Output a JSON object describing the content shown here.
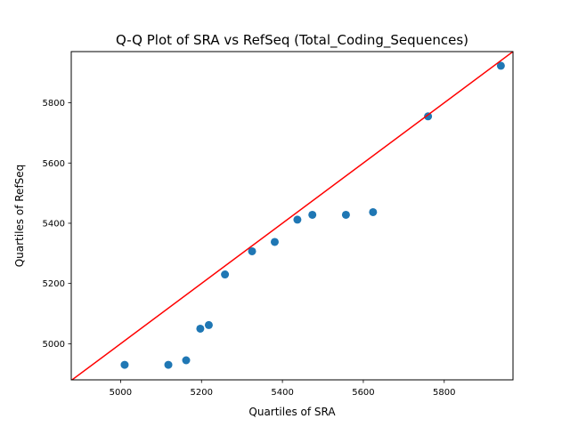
{
  "chart_data": {
    "type": "scatter",
    "title": "Q-Q Plot of SRA vs RefSeq (Total_Coding_Sequences)",
    "xlabel": "Quartiles of SRA",
    "ylabel": "Quartiles of RefSeq",
    "xlim": [
      4878,
      5970
    ],
    "ylim": [
      4880,
      5970
    ],
    "xticks": [
      5000,
      5200,
      5400,
      5600,
      5800
    ],
    "yticks": [
      5000,
      5200,
      5400,
      5600,
      5800
    ],
    "grid": false,
    "series": [
      {
        "type": "scatter",
        "color": "#1f77b4",
        "x": [
          5010,
          5118,
          5162,
          5197,
          5218,
          5258,
          5325,
          5381,
          5437,
          5474,
          5557,
          5624,
          5760,
          5940
        ],
        "y": [
          4930,
          4930,
          4945,
          5050,
          5062,
          5230,
          5307,
          5338,
          5412,
          5428,
          5428,
          5437,
          5755,
          5923
        ]
      }
    ],
    "reference_line": {
      "type": "line",
      "color": "#ff0000",
      "x": [
        4878,
        5970
      ],
      "y": [
        4878,
        5970
      ]
    }
  }
}
